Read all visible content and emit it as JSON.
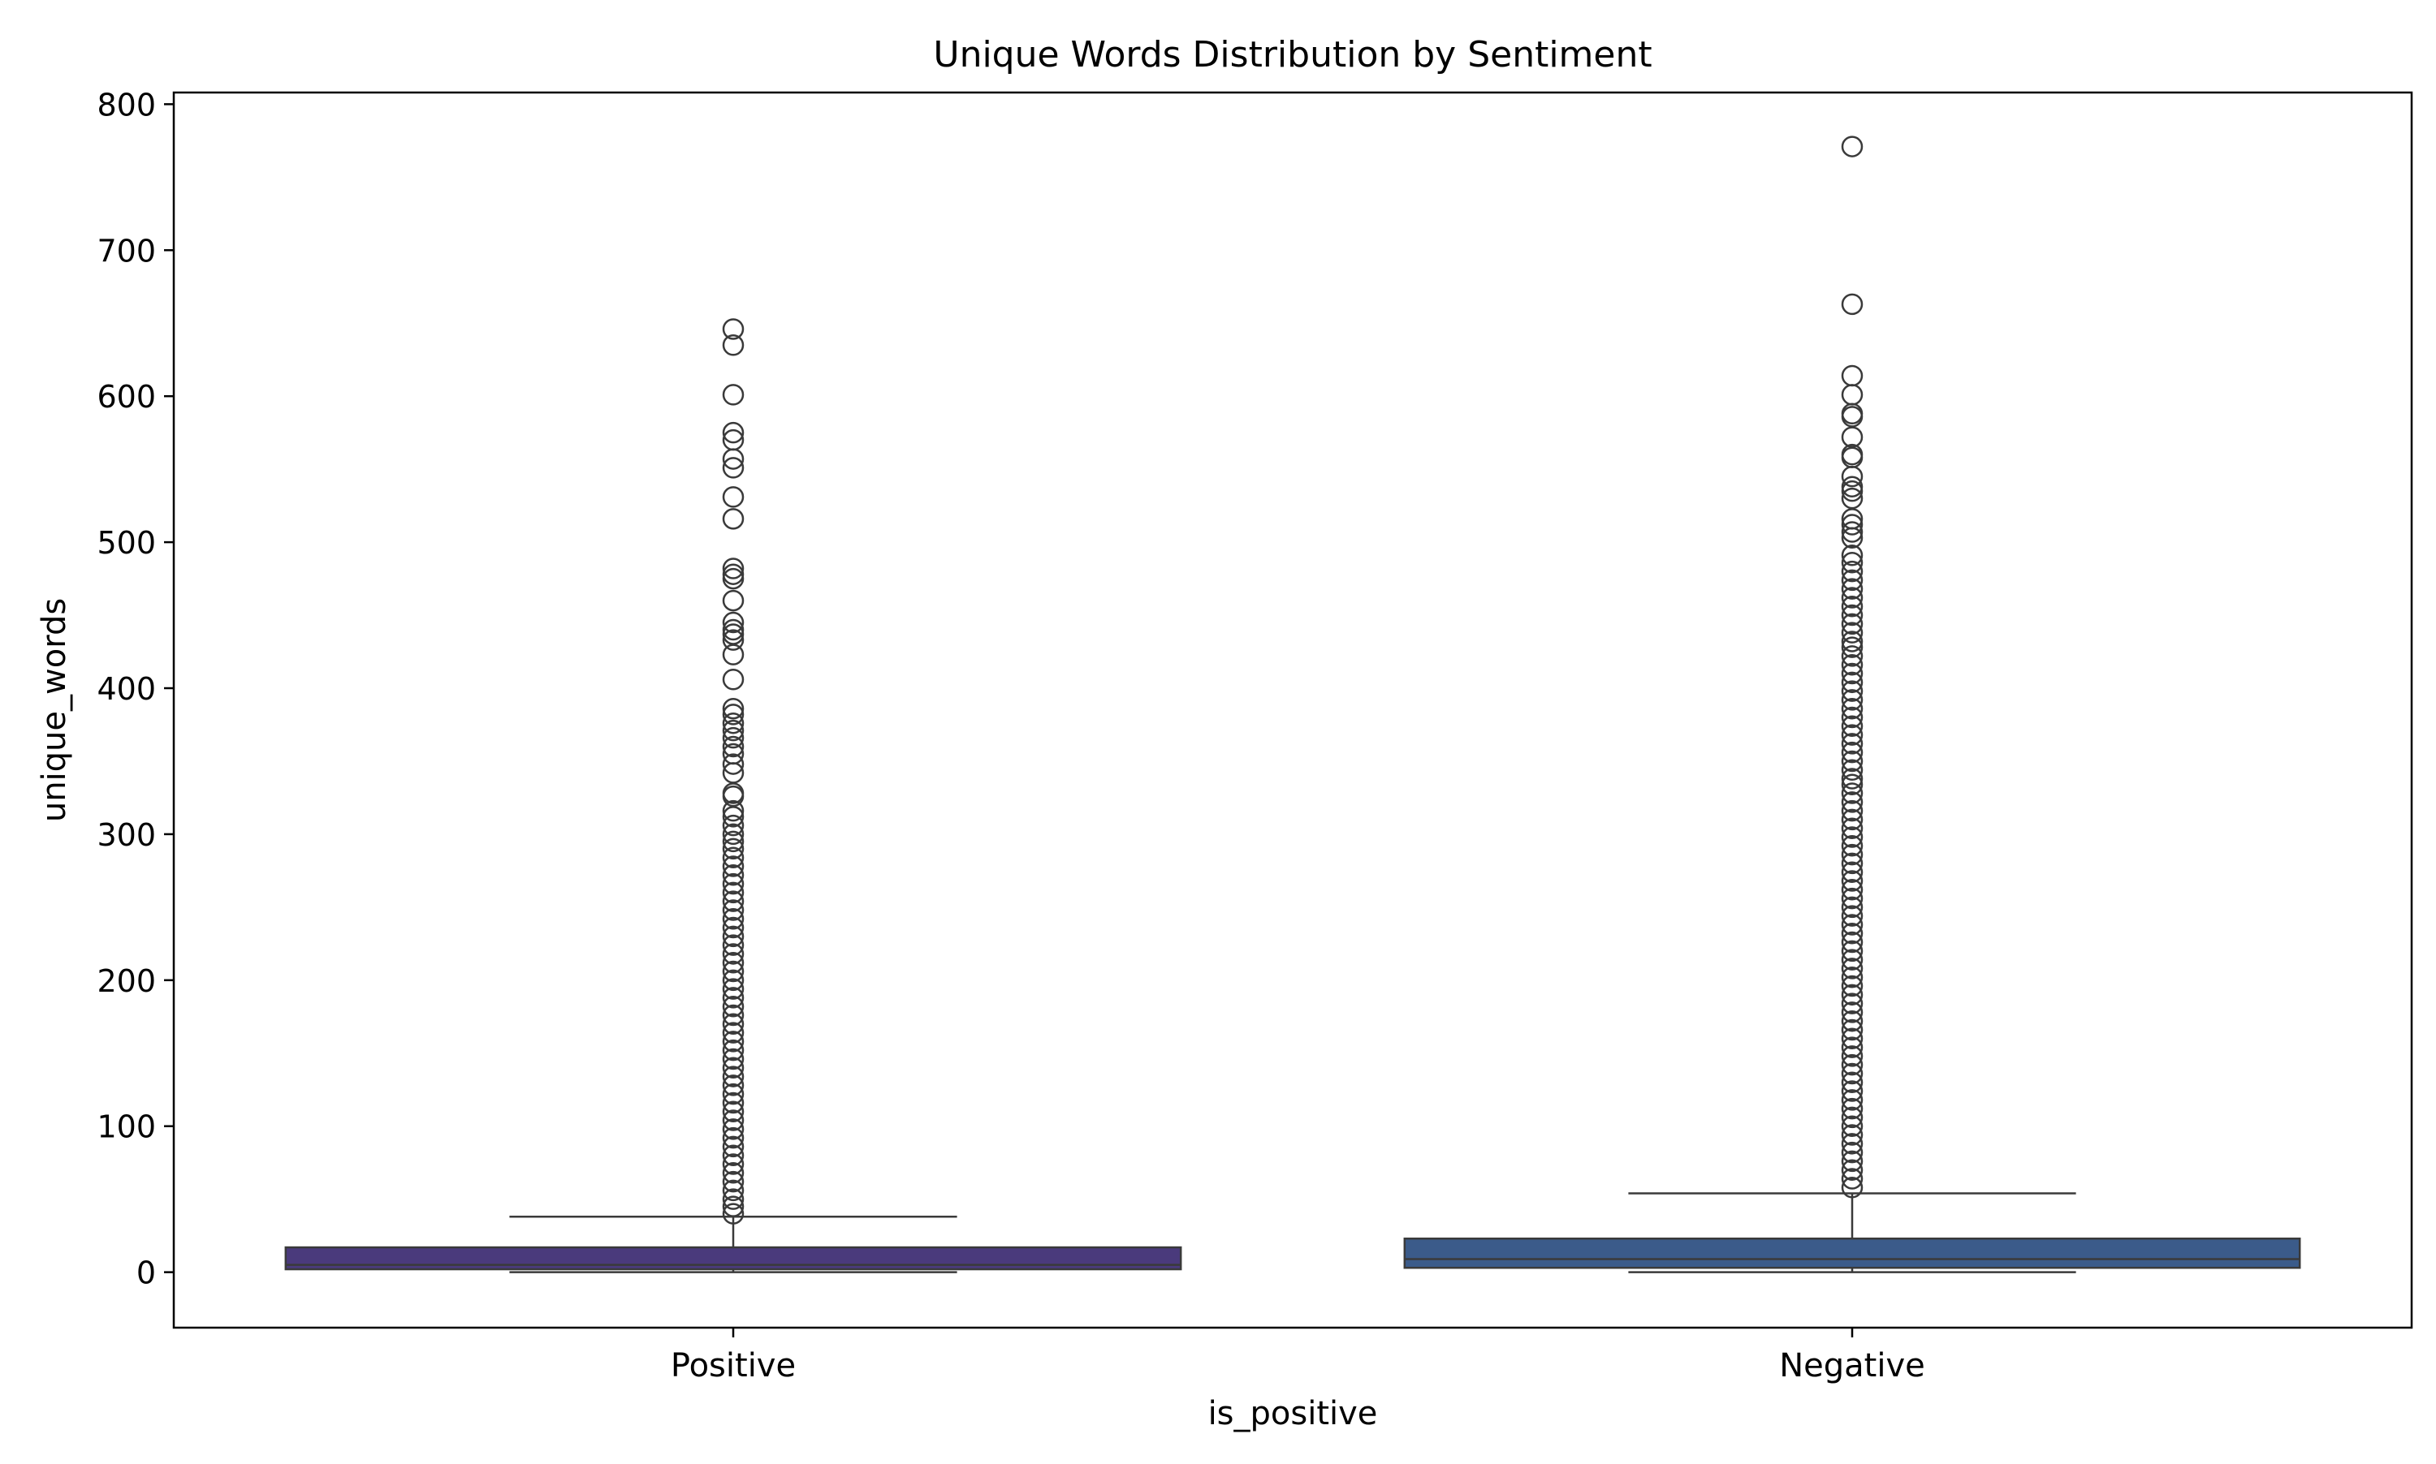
{
  "chart_data": {
    "type": "box",
    "title": "Unique Words Distribution by Sentiment",
    "xlabel": "is_positive",
    "ylabel": "unique_words",
    "ylim": [
      -38,
      808
    ],
    "yticks": [
      0,
      100,
      200,
      300,
      400,
      500,
      600,
      700,
      800
    ],
    "grid": false,
    "legend": "none",
    "categories": [
      "Positive",
      "Negative"
    ],
    "boxes": [
      {
        "category": "Positive",
        "color": "#4a3a7c",
        "whisker_low": 0,
        "q1": 2,
        "median": 5,
        "q3": 17,
        "whisker_high": 38,
        "outliers": [
          646,
          635,
          601,
          575,
          570,
          557,
          551,
          531,
          516,
          482,
          478,
          475,
          460,
          445,
          440,
          437,
          433,
          423,
          406,
          386,
          382,
          376,
          371,
          366,
          360,
          355,
          348,
          342,
          328,
          326,
          316,
          312,
          306,
          300,
          295,
          290,
          284,
          278,
          272,
          266,
          260,
          254,
          248,
          242,
          236,
          230,
          224,
          218,
          212,
          206,
          200,
          194,
          188,
          182,
          176,
          170,
          164,
          158,
          152,
          146,
          140,
          134,
          128,
          122,
          116,
          110,
          104,
          98,
          92,
          86,
          80,
          74,
          68,
          62,
          56,
          50,
          45,
          40
        ]
      },
      {
        "category": "Negative",
        "color": "#3b5b8a",
        "whisker_low": 0,
        "q1": 3,
        "median": 9,
        "q3": 23,
        "whisker_high": 54,
        "outliers": [
          771,
          663,
          614,
          601,
          588,
          586,
          572,
          560,
          558,
          545,
          538,
          535,
          530,
          516,
          512,
          507,
          503,
          491,
          486,
          480,
          474,
          468,
          462,
          456,
          450,
          444,
          438,
          432,
          428,
          422,
          416,
          410,
          404,
          398,
          392,
          386,
          380,
          374,
          368,
          362,
          356,
          350,
          344,
          338,
          334,
          328,
          322,
          316,
          310,
          304,
          298,
          292,
          286,
          280,
          274,
          268,
          262,
          256,
          250,
          244,
          238,
          232,
          226,
          220,
          214,
          208,
          202,
          196,
          190,
          184,
          178,
          172,
          166,
          160,
          154,
          148,
          142,
          136,
          130,
          124,
          118,
          112,
          106,
          100,
          94,
          88,
          82,
          76,
          70,
          64,
          58
        ]
      }
    ]
  }
}
